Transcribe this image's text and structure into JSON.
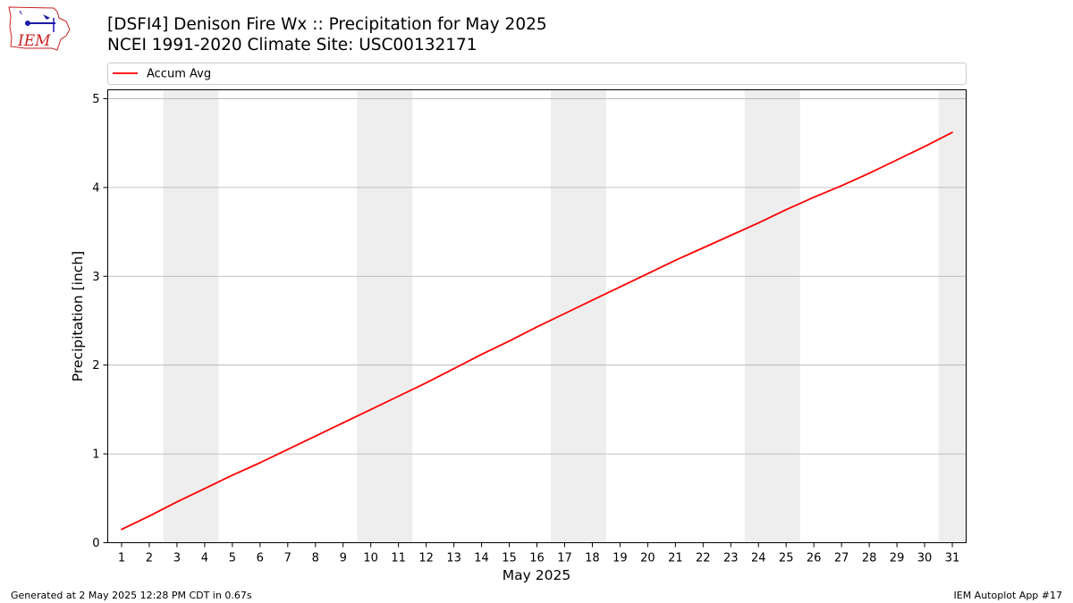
{
  "header": {
    "title": "[DSFI4] Denison Fire Wx :: Precipitation for May 2025",
    "subtitle": "NCEI 1991-2020 Climate Site: USC00132171"
  },
  "logo": {
    "text": "IEM",
    "icon": "iem-logo-icon",
    "color": "#cc2222"
  },
  "footer": {
    "left": "Generated at 2 May 2025 12:28 PM CDT in 0.67s",
    "right": "IEM Autoplot App #17"
  },
  "chart_data": {
    "type": "line",
    "xlabel": "May 2025",
    "ylabel": "Precipitation [inch]",
    "x": [
      1,
      2,
      3,
      4,
      5,
      6,
      7,
      8,
      9,
      10,
      11,
      12,
      13,
      14,
      15,
      16,
      17,
      18,
      19,
      20,
      21,
      22,
      23,
      24,
      25,
      26,
      27,
      28,
      29,
      30,
      31
    ],
    "xlim": [
      0.5,
      31.5
    ],
    "ylim": [
      0,
      5.1
    ],
    "yticks": [
      0,
      1,
      2,
      3,
      4,
      5
    ],
    "grid": "y",
    "legend_position": "top",
    "weekend_shading": [
      [
        3,
        4
      ],
      [
        10,
        11
      ],
      [
        17,
        18
      ],
      [
        24,
        25
      ],
      [
        31,
        31
      ]
    ],
    "shade_color": "#eeeeee",
    "series": [
      {
        "name": "Accum Avg",
        "color": "#ff0000",
        "values": [
          0.15,
          0.3,
          0.46,
          0.61,
          0.76,
          0.9,
          1.05,
          1.2,
          1.35,
          1.5,
          1.65,
          1.8,
          1.96,
          2.12,
          2.27,
          2.43,
          2.58,
          2.73,
          2.88,
          3.03,
          3.18,
          3.32,
          3.46,
          3.6,
          3.75,
          3.89,
          4.02,
          4.16,
          4.31,
          4.46,
          4.62
        ]
      }
    ]
  }
}
